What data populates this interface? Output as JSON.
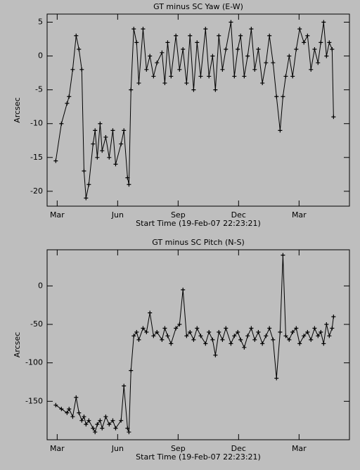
{
  "chart_data": [
    {
      "type": "line",
      "title": "GT minus SC Yaw (E-W)",
      "xlabel": "Start Time (19-Feb-07 22:23:21)",
      "ylabel": "Arcsec",
      "color": "#000000",
      "marker": "+",
      "xlim": [
        -0.5,
        14.5
      ],
      "xticks": [
        {
          "value": 0,
          "label": "Mar"
        },
        {
          "value": 3,
          "label": "Jun"
        },
        {
          "value": 6,
          "label": "Sep"
        },
        {
          "value": 9,
          "label": "Dec"
        },
        {
          "value": 12,
          "label": "Mar"
        }
      ],
      "ylim": [
        -22.2,
        6.2
      ],
      "yticks": [
        -20,
        -15,
        -10,
        -5,
        0,
        5
      ],
      "x": [
        -0.07,
        0.21,
        0.49,
        0.59,
        0.77,
        0.94,
        1.08,
        1.22,
        1.33,
        1.43,
        1.57,
        1.78,
        1.88,
        1.99,
        2.13,
        2.23,
        2.41,
        2.58,
        2.76,
        2.9,
        3.17,
        3.31,
        3.49,
        3.56,
        3.66,
        3.8,
        3.94,
        4.05,
        4.26,
        4.43,
        4.6,
        4.78,
        4.95,
        5.2,
        5.34,
        5.48,
        5.65,
        5.89,
        6.07,
        6.24,
        6.42,
        6.59,
        6.77,
        6.94,
        7.12,
        7.36,
        7.53,
        7.71,
        7.85,
        8.02,
        8.2,
        8.37,
        8.62,
        8.79,
        8.96,
        9.1,
        9.28,
        9.45,
        9.63,
        9.8,
        9.98,
        10.18,
        10.36,
        10.53,
        10.71,
        10.88,
        11.06,
        11.2,
        11.34,
        11.51,
        11.68,
        11.86,
        12.03,
        12.24,
        12.42,
        12.59,
        12.77,
        12.94,
        13.08,
        13.22,
        13.36,
        13.5,
        13.64,
        13.71
      ],
      "values": [
        -15.5,
        -10,
        -7,
        -6,
        -2,
        3,
        1,
        -2,
        -17,
        -21,
        -19,
        -13,
        -11,
        -15,
        -10,
        -14,
        -12,
        -15,
        -11,
        -16,
        -13,
        -11,
        -18,
        -19,
        -5,
        4,
        2,
        -4,
        4,
        -2,
        0,
        -3,
        -1,
        0.5,
        -4,
        2,
        -3,
        3,
        -2,
        1,
        -4,
        3,
        -5,
        2,
        -3,
        4,
        -3,
        0,
        -5,
        3,
        -2,
        1,
        5,
        -3,
        1,
        3,
        -3,
        0,
        4,
        -2,
        1,
        -4,
        -1,
        3,
        -1,
        -6,
        -11,
        -6,
        -3,
        0,
        -3,
        1,
        4,
        2,
        3,
        -2,
        1,
        -1,
        2,
        5,
        0,
        2,
        1,
        -9
      ]
    },
    {
      "type": "line",
      "title": "GT minus SC Pitch (N-S)",
      "xlabel": "Start Time (19-Feb-07 22:23:21)",
      "ylabel": "Arcsec",
      "color": "#000000",
      "marker": "+",
      "xlim": [
        -0.5,
        14.5
      ],
      "xticks": [
        {
          "value": 0,
          "label": "Mar"
        },
        {
          "value": 3,
          "label": "Jun"
        },
        {
          "value": 6,
          "label": "Sep"
        },
        {
          "value": 9,
          "label": "Dec"
        },
        {
          "value": 12,
          "label": "Mar"
        }
      ],
      "ylim": [
        -200,
        47
      ],
      "yticks": [
        -150,
        -100,
        -50,
        0
      ],
      "x": [
        -0.07,
        0.21,
        0.49,
        0.59,
        0.77,
        0.94,
        1.08,
        1.22,
        1.33,
        1.43,
        1.57,
        1.78,
        1.88,
        1.99,
        2.13,
        2.23,
        2.41,
        2.58,
        2.76,
        2.9,
        3.17,
        3.31,
        3.49,
        3.56,
        3.66,
        3.8,
        3.94,
        4.05,
        4.26,
        4.43,
        4.6,
        4.78,
        4.95,
        5.2,
        5.34,
        5.48,
        5.65,
        5.89,
        6.07,
        6.24,
        6.42,
        6.59,
        6.77,
        6.94,
        7.12,
        7.36,
        7.53,
        7.71,
        7.85,
        8.02,
        8.2,
        8.37,
        8.62,
        8.79,
        8.96,
        9.1,
        9.28,
        9.45,
        9.63,
        9.8,
        9.98,
        10.18,
        10.36,
        10.53,
        10.71,
        10.88,
        11.06,
        11.2,
        11.34,
        11.51,
        11.68,
        11.86,
        12.03,
        12.24,
        12.42,
        12.59,
        12.77,
        12.94,
        13.08,
        13.22,
        13.36,
        13.5,
        13.64,
        13.71
      ],
      "values": [
        -155,
        -160,
        -165,
        -160,
        -170,
        -145,
        -165,
        -175,
        -170,
        -180,
        -175,
        -185,
        -190,
        -180,
        -175,
        -185,
        -170,
        -180,
        -175,
        -185,
        -175,
        -130,
        -185,
        -190,
        -110,
        -65,
        -60,
        -70,
        -55,
        -60,
        -35,
        -65,
        -60,
        -70,
        -55,
        -65,
        -75,
        -55,
        -50,
        -5,
        -65,
        -60,
        -70,
        -55,
        -65,
        -75,
        -60,
        -70,
        -90,
        -60,
        -70,
        -55,
        -75,
        -65,
        -60,
        -70,
        -80,
        -65,
        -55,
        -70,
        -60,
        -75,
        -65,
        -55,
        -70,
        -120,
        -60,
        40,
        -65,
        -70,
        -60,
        -55,
        -75,
        -65,
        -60,
        -70,
        -55,
        -65,
        -60,
        -75,
        -50,
        -65,
        -55,
        -40
      ]
    }
  ]
}
